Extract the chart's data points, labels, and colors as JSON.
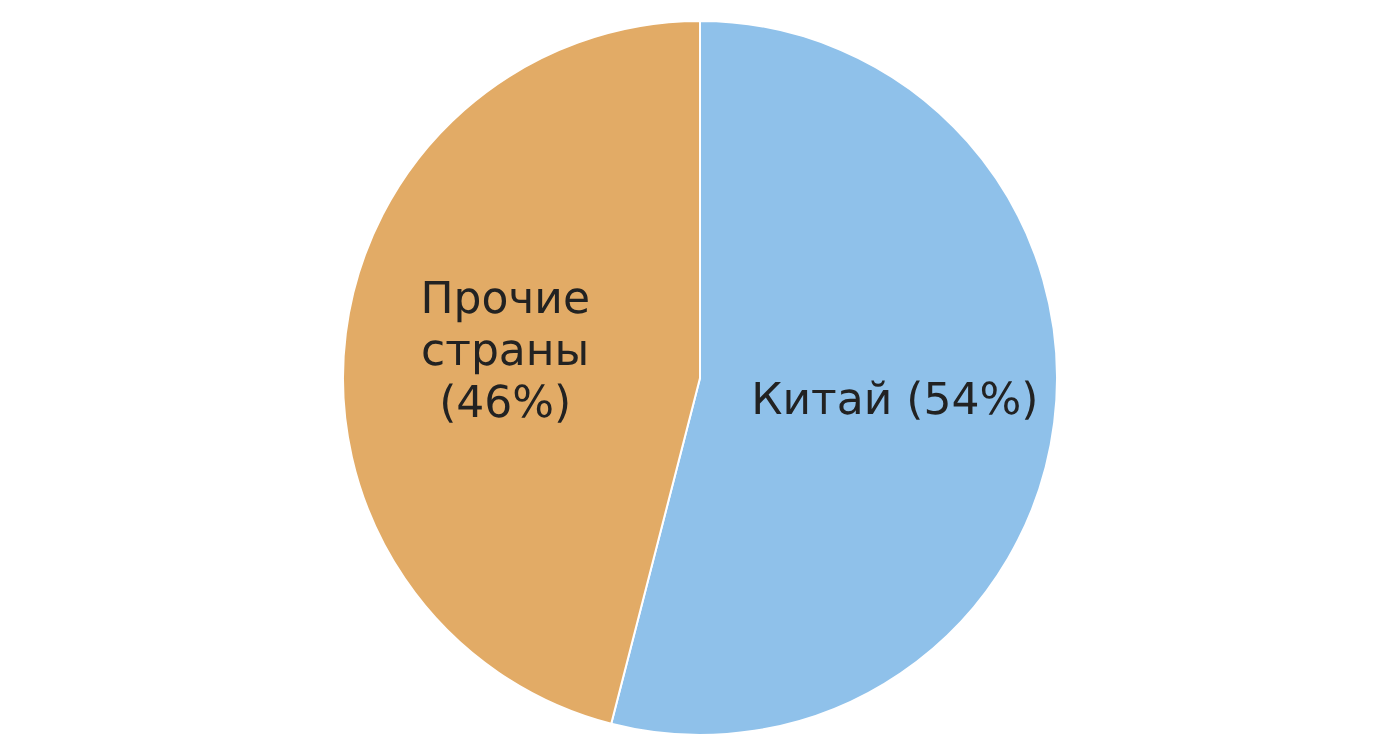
{
  "chart_data": {
    "type": "pie",
    "categories": [
      "Китай (54%)",
      "Прочие страны (46%)"
    ],
    "values": [
      54,
      46
    ],
    "colors": [
      "#8fc1ea",
      "#e2ab66"
    ],
    "legend": false
  }
}
